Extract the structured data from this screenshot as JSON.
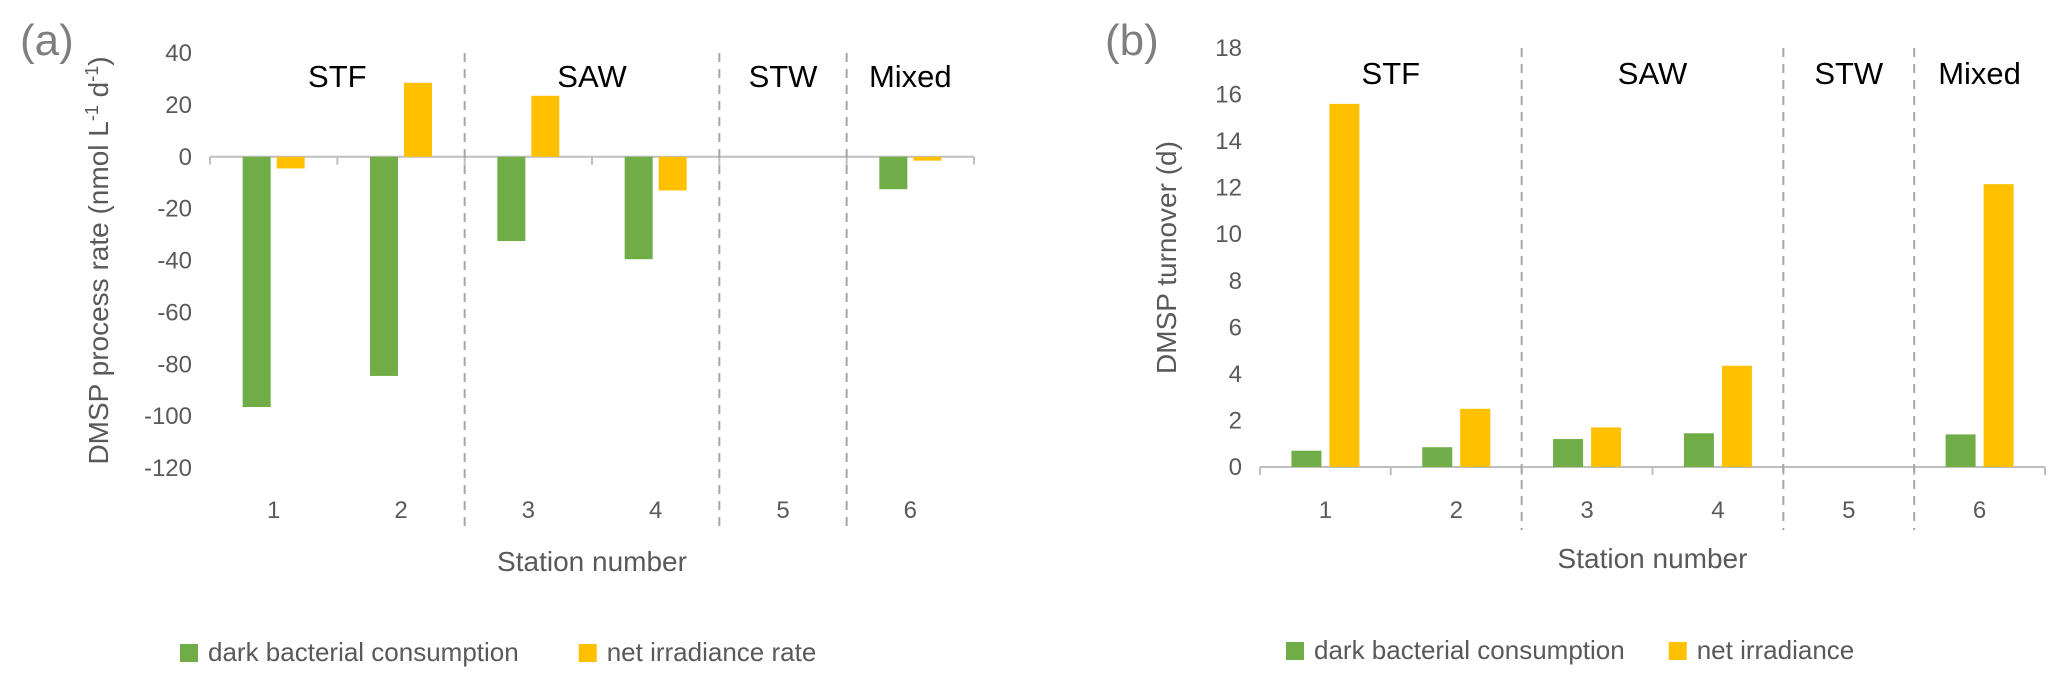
{
  "chart_data": [
    {
      "panel_label": "(a)",
      "type": "bar",
      "xlabel": "Station number",
      "ylabel_parts": [
        "DMSP process rate (nmol L",
        "-1",
        " d",
        "-1",
        ")"
      ],
      "categories": [
        "1",
        "2",
        "3",
        "4",
        "5",
        "6"
      ],
      "ylim": [
        -120,
        40
      ],
      "yticks": [
        40,
        20,
        0,
        -20,
        -40,
        -60,
        -80,
        -100,
        -120
      ],
      "grid": false,
      "legend_position": "bottom",
      "regions": [
        {
          "label": "STF",
          "span": [
            0,
            2
          ]
        },
        {
          "label": "SAW",
          "span": [
            2,
            4
          ]
        },
        {
          "label": "STW",
          "span": [
            4,
            5
          ]
        },
        {
          "label": "Mixed",
          "span": [
            5,
            6
          ]
        }
      ],
      "series": [
        {
          "name": "dark bacterial consumption",
          "color": "#70ad47",
          "values": [
            -96.5,
            -84.5,
            -32.5,
            -39.5,
            null,
            -12.5
          ]
        },
        {
          "name": "net irradiance rate",
          "color": "#ffc000",
          "values": [
            -4.5,
            28.5,
            23.5,
            -13.0,
            null,
            -1.5
          ]
        }
      ]
    },
    {
      "panel_label": "(b)",
      "type": "bar",
      "xlabel": "Station number",
      "ylabel": "DMSP turnover (d)",
      "categories": [
        "1",
        "2",
        "3",
        "4",
        "5",
        "6"
      ],
      "ylim": [
        0,
        18
      ],
      "yticks": [
        18,
        16,
        14,
        12,
        10,
        8,
        6,
        4,
        2,
        0
      ],
      "grid": false,
      "legend_position": "bottom",
      "regions": [
        {
          "label": "STF",
          "span": [
            0,
            2
          ]
        },
        {
          "label": "SAW",
          "span": [
            2,
            4
          ]
        },
        {
          "label": "STW",
          "span": [
            4,
            5
          ]
        },
        {
          "label": "Mixed",
          "span": [
            5,
            6
          ]
        }
      ],
      "series": [
        {
          "name": "dark bacterial consumption",
          "color": "#70ad47",
          "values": [
            0.7,
            0.85,
            1.2,
            1.45,
            null,
            1.4
          ]
        },
        {
          "name": "net irradiance",
          "color": "#ffc000",
          "values": [
            15.6,
            2.5,
            1.7,
            4.35,
            null,
            12.15
          ]
        }
      ]
    }
  ]
}
